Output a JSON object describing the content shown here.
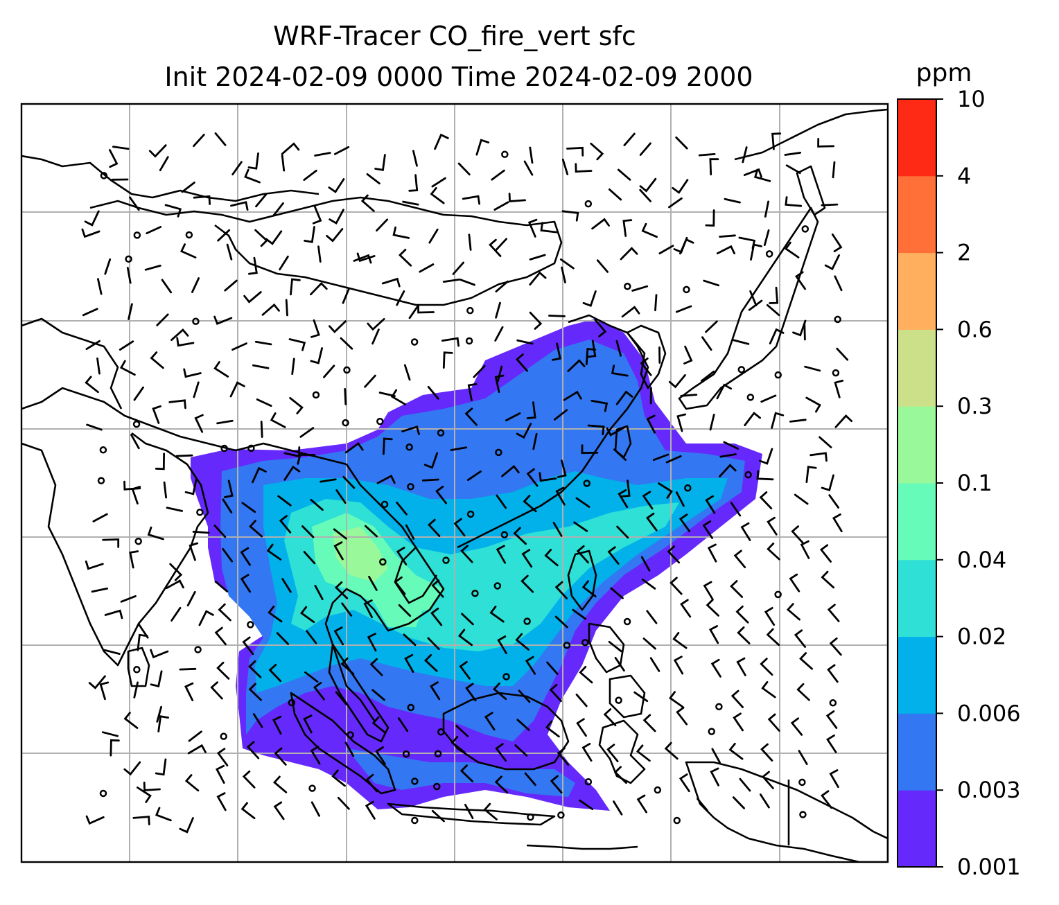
{
  "title": {
    "line1": "WRF-Tracer CO_fire_vert sfc",
    "line2": "Init 2024-02-09 0000 Time 2024-02-09 2000"
  },
  "colorbar": {
    "unit": "ppm",
    "levels": [
      "0.001",
      "0.003",
      "0.006",
      "0.02",
      "0.04",
      "0.1",
      "0.3",
      "0.6",
      "2",
      "4",
      "10"
    ],
    "colors": [
      "#6629fb",
      "#3377f2",
      "#02b1ea",
      "#2ee0d6",
      "#66fbb9",
      "#99f899",
      "#cce08a",
      "#ffaf5e",
      "#ff7039",
      "#ff2a15"
    ]
  },
  "map": {
    "plume_colors": {
      "outer": "#6629fb",
      "low": "#3377f2",
      "mid": "#02b1ea",
      "high": "#2ee0d6",
      "peak": "#66fbb9",
      "core": "#99f899"
    },
    "coastline_color": "#000000",
    "gridline_color": "#b0b0b0",
    "wind_barb_color": "#000000"
  }
}
